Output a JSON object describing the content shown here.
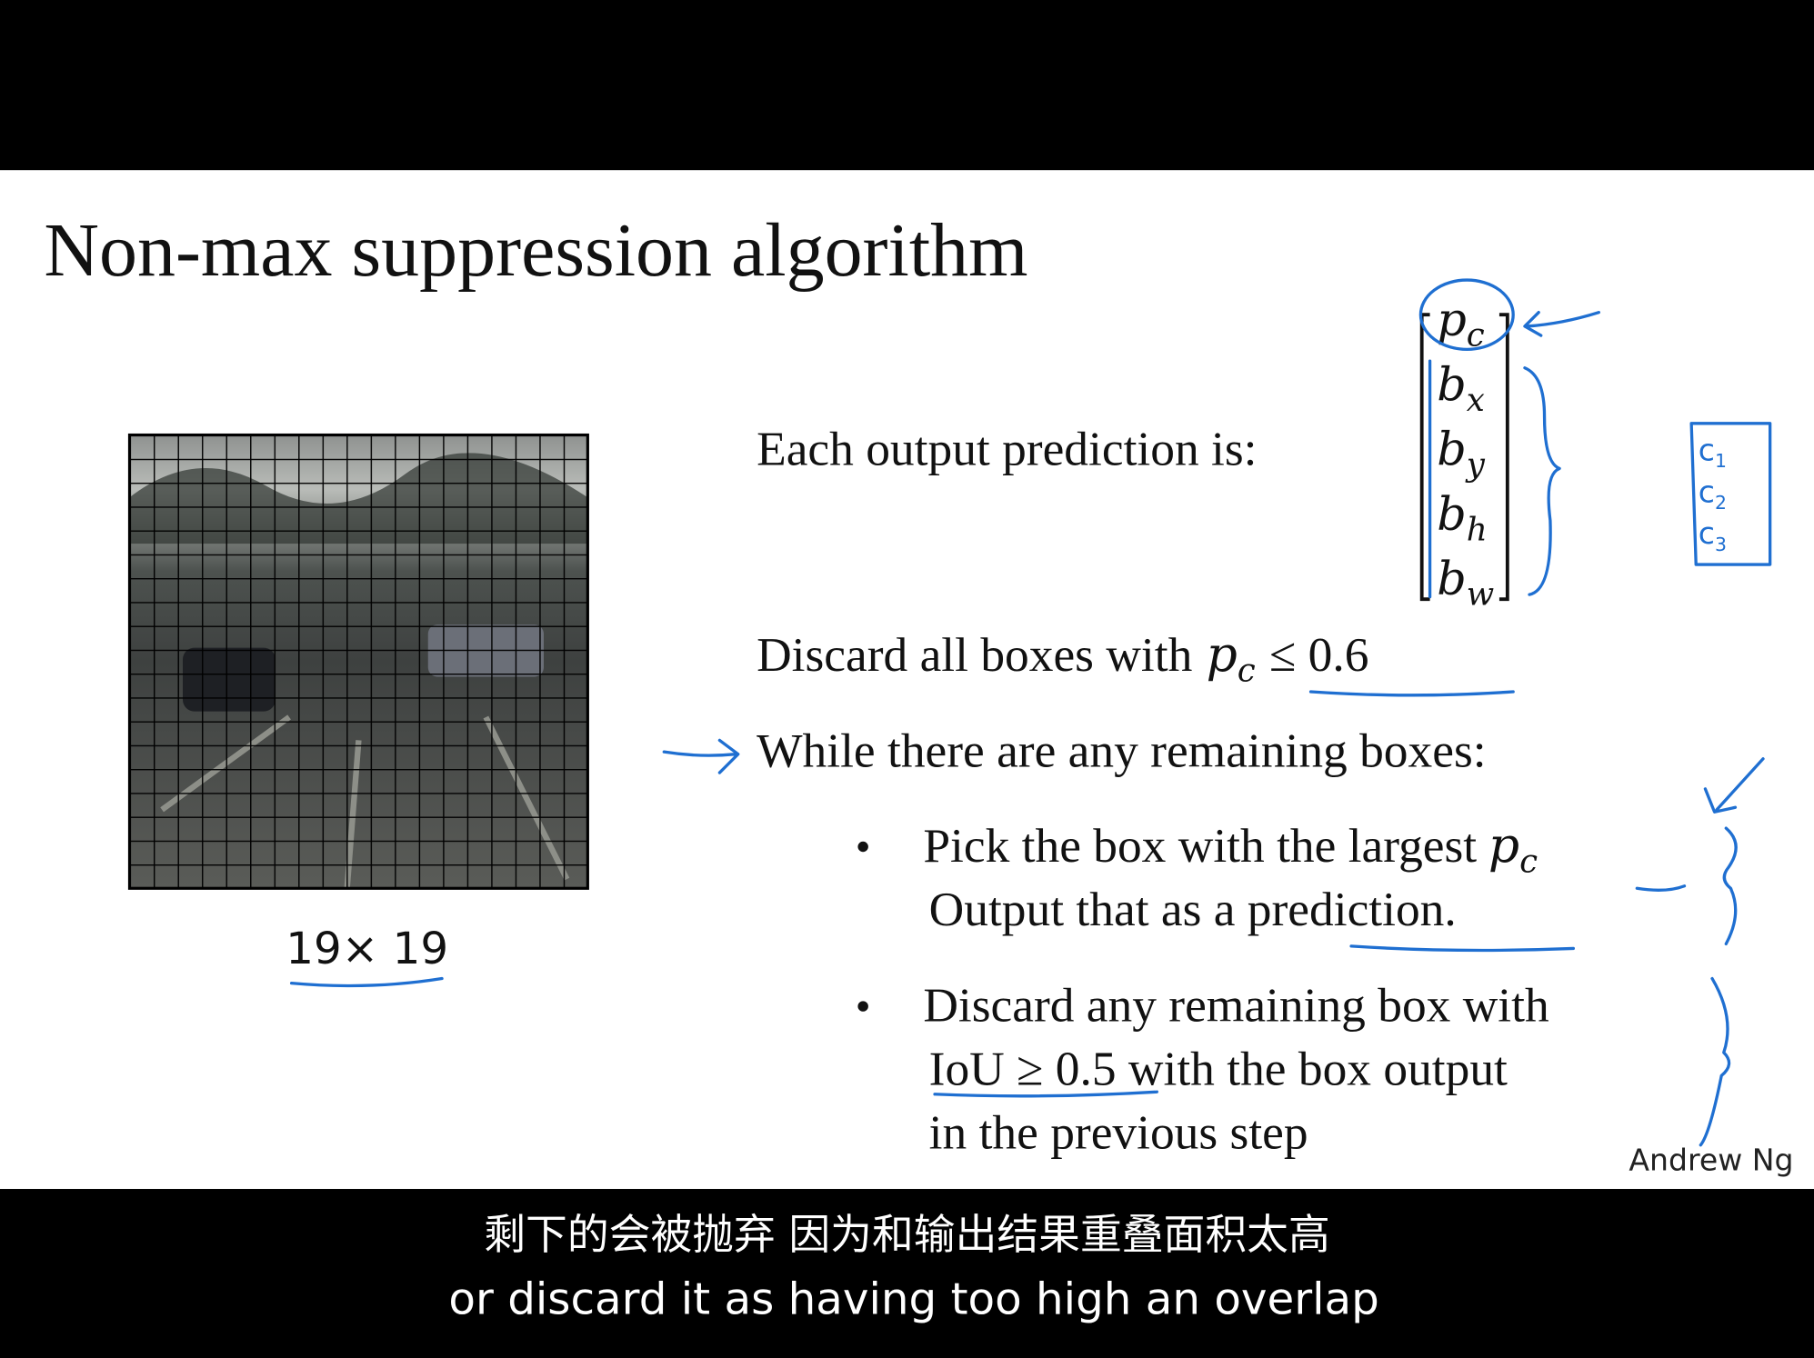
{
  "slide": {
    "title": "Non-max suppression algorithm",
    "grid_caption": "19× 19",
    "output_label": "Each output prediction is:",
    "vector": [
      {
        "base": "p",
        "sub": "c"
      },
      {
        "base": "b",
        "sub": "x"
      },
      {
        "base": "b",
        "sub": "y"
      },
      {
        "base": "b",
        "sub": "h"
      },
      {
        "base": "b",
        "sub": "w"
      }
    ],
    "handwritten_notes": [
      {
        "base": "c",
        "sub": "1"
      },
      {
        "base": "c",
        "sub": "2"
      },
      {
        "base": "c",
        "sub": "3"
      }
    ],
    "discard_rule": {
      "text": "Discard all boxes with",
      "var": "p",
      "sub": "c",
      "condition": "≤ 0.6"
    },
    "loop": "While there are any remaining boxes:",
    "bullets": [
      {
        "lines": [
          "Pick the box with the largest",
          "Output that as a prediction."
        ],
        "var": "p",
        "sub": "c"
      },
      {
        "lines": [
          "Discard any remaining box with",
          "IoU ≥ 0.5 with the box output",
          "in the previous step"
        ]
      }
    ],
    "author": "Andrew Ng"
  },
  "subtitles": {
    "chinese": "剩下的会被抛弃 因为和输出结果重叠面积太高",
    "english": "or discard it as having too high an overlap"
  }
}
